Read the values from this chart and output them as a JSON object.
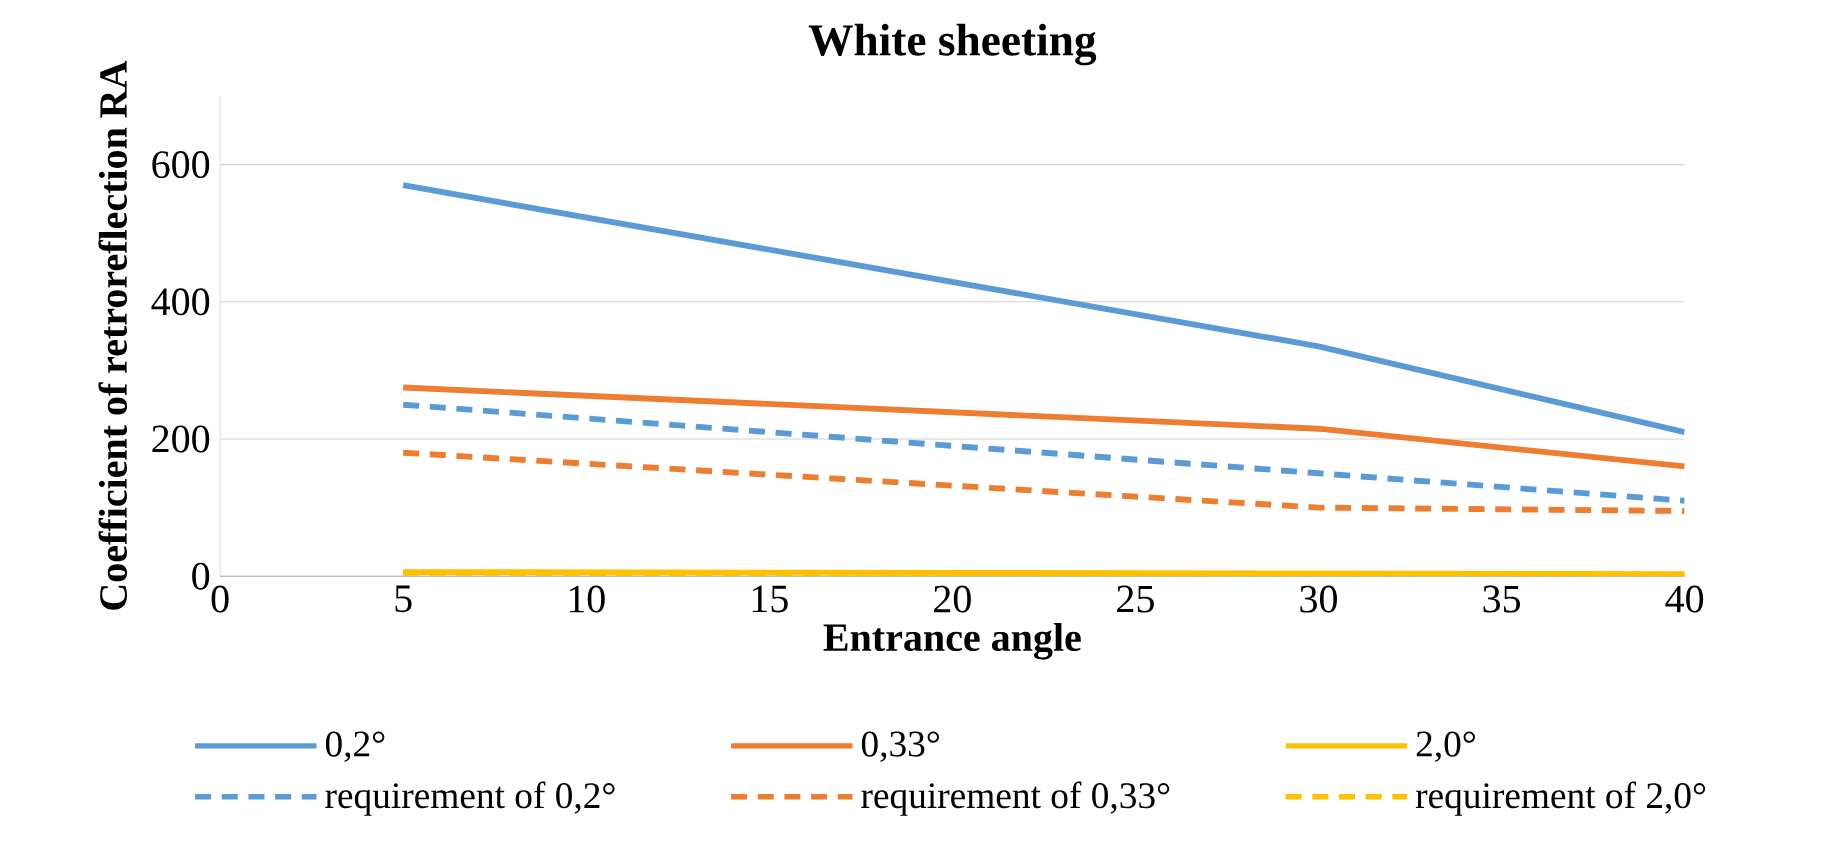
{
  "chart_data": {
    "type": "line",
    "title": "White sheeting",
    "xlabel": "Entrance angle",
    "ylabel": "Coefficient of retroreflection RA",
    "x": [
      5,
      30,
      40
    ],
    "xlim": [
      0,
      40
    ],
    "xticks": [
      0,
      5,
      10,
      15,
      20,
      25,
      30,
      35,
      40
    ],
    "ylim": [
      0,
      700
    ],
    "yticks": [
      0,
      200,
      400,
      600
    ],
    "grid": "y",
    "legend": "bottom",
    "marker": "none",
    "series": [
      {
        "name": "0,2°",
        "color": "#5b9bd5",
        "values": [
          570,
          335,
          210
        ],
        "line_style": "solid"
      },
      {
        "name": "0,33°",
        "color": "#ed7d31",
        "values": [
          275,
          215,
          160
        ],
        "line_style": "solid"
      },
      {
        "name": "2,0°",
        "color": "#ffc000",
        "values": [
          6,
          4,
          3
        ],
        "line_style": "solid"
      },
      {
        "name": "requirement of 0,2°",
        "color": "#5b9bd5",
        "values": [
          250,
          150,
          110
        ],
        "line_style": "dashed"
      },
      {
        "name": "requirement of 0,33°",
        "color": "#ed7d31",
        "values": [
          180,
          100,
          95
        ],
        "line_style": "dashed"
      },
      {
        "name": "requirement of 2,0°",
        "color": "#ffc000",
        "values": [
          5,
          3,
          2
        ],
        "line_style": "dashed"
      }
    ]
  }
}
